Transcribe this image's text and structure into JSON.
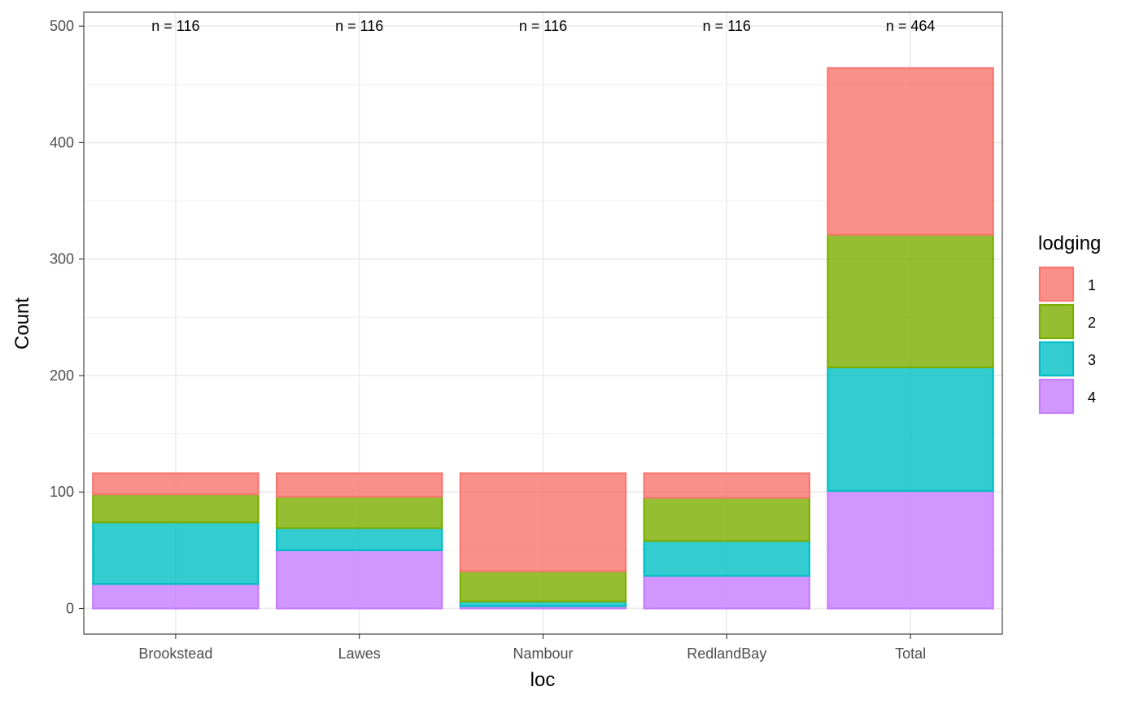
{
  "chart_data": {
    "type": "bar",
    "stacked": true,
    "xlabel": "loc",
    "ylabel": "Count",
    "ylim": [
      -22,
      512
    ],
    "yticks": [
      0,
      100,
      200,
      300,
      400,
      500
    ],
    "grid": true,
    "legend_position": "right",
    "legend_title": "lodging",
    "categories": [
      "Brookstead",
      "Lawes",
      "Nambour",
      "RedlandBay",
      "Total"
    ],
    "annotations": [
      "n = 116",
      "n = 116",
      "n = 116",
      "n = 116",
      "n = 464"
    ],
    "series": [
      {
        "name": "1",
        "color": "#F8766D",
        "values": [
          18,
          20,
          84,
          21,
          143
        ]
      },
      {
        "name": "2",
        "color": "#7CAE00",
        "values": [
          24,
          27,
          26,
          37,
          114
        ]
      },
      {
        "name": "3",
        "color": "#00BFC4",
        "values": [
          53,
          19,
          4,
          30,
          106
        ]
      },
      {
        "name": "4",
        "color": "#C77CFF",
        "values": [
          21,
          50,
          2,
          28,
          101
        ]
      }
    ]
  }
}
